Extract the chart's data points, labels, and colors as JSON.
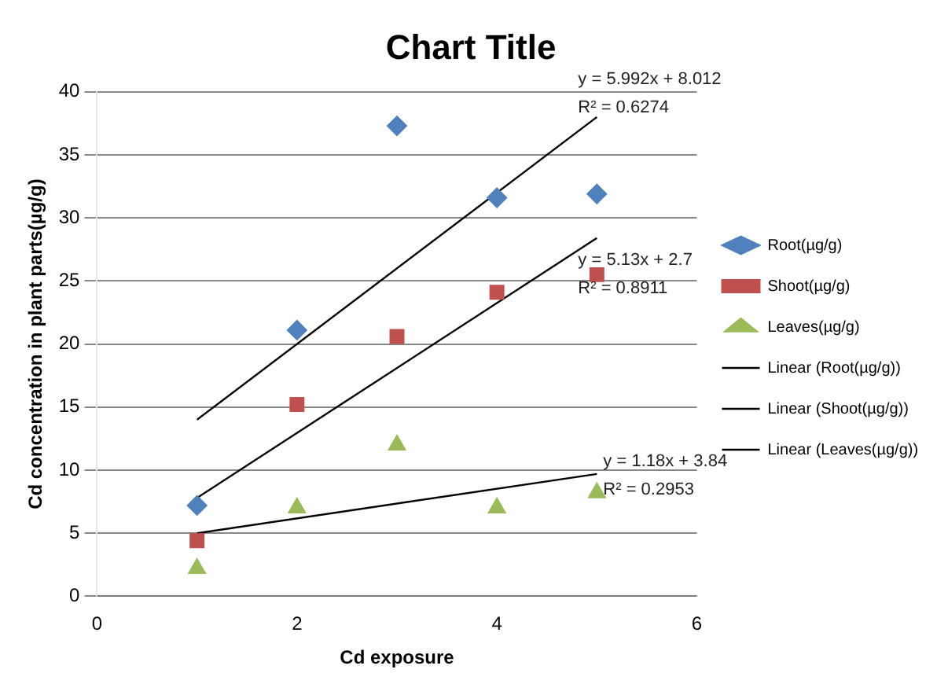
{
  "chart_data": {
    "type": "scatter",
    "title": "Chart Title",
    "xlabel": "Cd exposure",
    "ylabel": "Cd concentration in plant parts(µg/g)",
    "xlim": [
      0,
      6
    ],
    "xticks": [
      0,
      2,
      4,
      6
    ],
    "ylim": [
      0,
      40
    ],
    "yticks": [
      0,
      5,
      10,
      15,
      20,
      25,
      30,
      35,
      40
    ],
    "grid": "y",
    "legend": "right",
    "series": [
      {
        "name": "Root(µg/g)",
        "type": "scatter",
        "marker": "diamond",
        "color": "#4f81bd",
        "x": [
          1,
          2,
          3,
          4,
          5
        ],
        "values": [
          7.2,
          21.1,
          37.3,
          31.6,
          31.9
        ]
      },
      {
        "name": "Shoot(µg/g)",
        "type": "scatter",
        "marker": "square",
        "color": "#c0504d",
        "x": [
          1,
          2,
          3,
          4,
          5
        ],
        "values": [
          4.4,
          15.2,
          20.6,
          24.1,
          25.5
        ]
      },
      {
        "name": "Leaves(µg/g)",
        "type": "scatter",
        "marker": "triangle",
        "color": "#9bbb59",
        "x": [
          1,
          2,
          3,
          4,
          5
        ],
        "values": [
          2.2,
          7.0,
          12.0,
          7.0,
          8.2
        ]
      },
      {
        "name": "Linear (Root(µg/g))",
        "type": "line",
        "marker": "none",
        "color": "#000000",
        "x": [
          1,
          5
        ],
        "values": [
          14.0,
          38.0
        ]
      },
      {
        "name": "Linear (Shoot(µg/g))",
        "type": "line",
        "marker": "none",
        "color": "#000000",
        "x": [
          1,
          5
        ],
        "values": [
          7.8,
          28.4
        ]
      },
      {
        "name": "Linear (Leaves(µg/g))",
        "type": "line",
        "marker": "none",
        "color": "#000000",
        "x": [
          1,
          5
        ],
        "values": [
          5.0,
          9.7
        ]
      }
    ],
    "annotations": [
      "y = 5.992x + 8.012",
      "R² = 0.6274",
      "y = 5.13x + 2.7",
      "R² = 0.8911",
      "y = 1.18x + 3.84",
      "R² = 0.2953"
    ]
  }
}
